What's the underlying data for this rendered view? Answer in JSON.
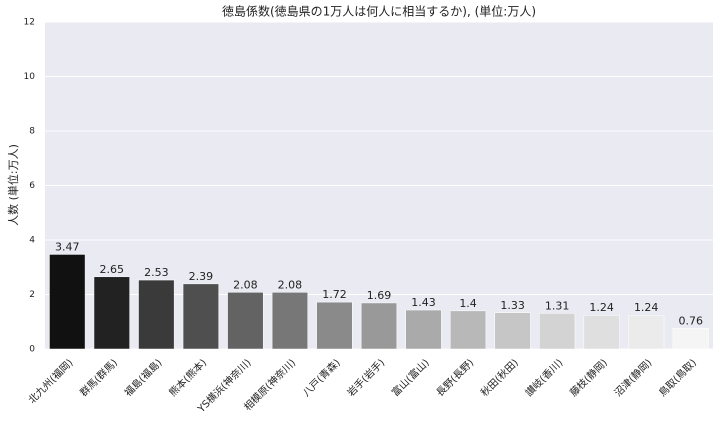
{
  "chart_data": {
    "type": "bar",
    "title": "徳島係数(徳島県の1万人は何人に相当するか), (単位:万人)",
    "y_label": "人数 (単位:万人)",
    "categories": [
      "北九州(福岡)",
      "群馬(群馬)",
      "福島(福島)",
      "熊本(熊本)",
      "YS横浜(神奈川)",
      "相模原(神奈川)",
      "八戸(青森)",
      "岩手(岩手)",
      "富山(富山)",
      "長野(長野)",
      "秋田(秋田)",
      "讃岐(香川)",
      "藤枝(静岡)",
      "沼津(静岡)",
      "鳥取(鳥取)"
    ],
    "values": [
      3.47,
      2.65,
      2.53,
      2.39,
      2.08,
      2.08,
      1.72,
      1.69,
      1.43,
      1.4,
      1.33,
      1.31,
      1.24,
      1.24,
      0.76
    ],
    "colors": [
      "#111111",
      "#222222",
      "#3a3a3a",
      "#4f4f4f",
      "#636363",
      "#777777",
      "#8a8a8a",
      "#999999",
      "#aaaaaa",
      "#b8b8b8",
      "#c6c6c6",
      "#d3d3d3",
      "#dfdfdf",
      "#ebebeb",
      "#f5f5f5"
    ],
    "ylim": [
      0,
      12
    ],
    "yticks": [
      0,
      2,
      4,
      6,
      8,
      10,
      12
    ],
    "grid": true
  }
}
